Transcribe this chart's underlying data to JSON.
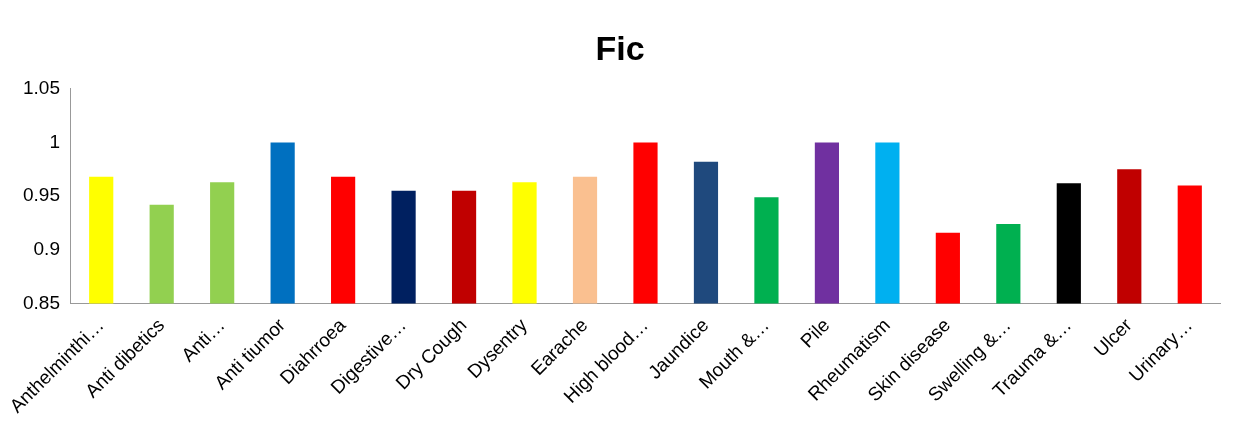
{
  "chart_data": {
    "type": "bar",
    "title": "Fic",
    "categories": [
      "Anthelminthi…",
      "Anti dibetics",
      "Anti…",
      "Anti tiumor",
      "Diahrroea",
      "Digestive…",
      "Dry Cough",
      "Dysentry",
      "Earache",
      "High blood…",
      "Jaundice",
      "Mouth &…",
      "Pile",
      "Rheumatism",
      "Skin disease",
      "Swelling &…",
      "Trauma &…",
      "Ulcer",
      "Urinary…"
    ],
    "values": [
      0.968,
      0.942,
      0.963,
      1.0,
      0.968,
      0.955,
      0.955,
      0.963,
      0.968,
      1.0,
      0.982,
      0.949,
      1.0,
      1.0,
      0.916,
      0.924,
      0.962,
      0.975,
      0.96
    ],
    "colors": [
      "#ffff00",
      "#92d050",
      "#92d050",
      "#0070c0",
      "#ff0000",
      "#002060",
      "#c00000",
      "#ffff00",
      "#fac090",
      "#ff0000",
      "#1f497d",
      "#00b050",
      "#7030a0",
      "#00b0f0",
      "#ff0000",
      "#00b050",
      "#000000",
      "#c00000",
      "#ff0000"
    ],
    "ylim": [
      0.85,
      1.05
    ],
    "yticks": [
      0.85,
      0.9,
      0.95,
      1,
      1.05
    ],
    "grid": false,
    "legend": false
  }
}
